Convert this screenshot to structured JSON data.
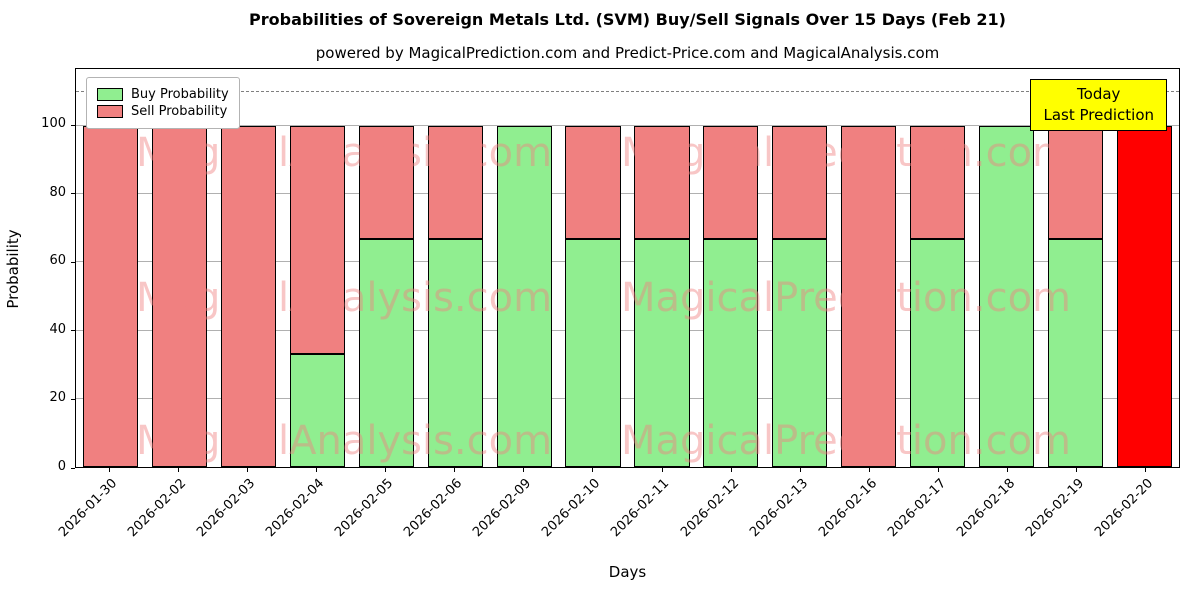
{
  "title": "Probabilities of Sovereign Metals Ltd. (SVM) Buy/Sell Signals Over 15 Days (Feb 21)",
  "subtitle": "powered by MagicalPrediction.com and Predict-Price.com and MagicalAnalysis.com",
  "legend": {
    "buy": "Buy Probability",
    "sell": "Sell Probability"
  },
  "annotation": {
    "line1": "Today",
    "line2": "Last Prediction"
  },
  "watermarks": [
    "MagicalAnalysis.com",
    "MagicalPrediction.com"
  ],
  "colors": {
    "buy": "#90ee90",
    "sell": "#f08080",
    "today": "#ff0000",
    "annotation_bg": "#ffff00",
    "watermark": "rgba(240,128,128,0.45)",
    "grid": "#b0b0b0",
    "dashed_line": "#7f7f7f"
  },
  "chart_data": {
    "type": "bar",
    "stacked": true,
    "title": "Probabilities of Sovereign Metals Ltd. (SVM) Buy/Sell Signals Over 15 Days (Feb 21)",
    "xlabel": "Days",
    "ylabel": "Probability",
    "categories": [
      "2026-01-30",
      "2026-02-02",
      "2026-02-03",
      "2026-02-04",
      "2026-02-05",
      "2026-02-06",
      "2026-02-09",
      "2026-02-10",
      "2026-02-11",
      "2026-02-12",
      "2026-02-13",
      "2026-02-16",
      "2026-02-17",
      "2026-02-18",
      "2026-02-19",
      "2026-02-20"
    ],
    "series": [
      {
        "name": "Buy Probability",
        "color": "#90ee90",
        "values": [
          0,
          0,
          0,
          33,
          67,
          67,
          100,
          67,
          67,
          67,
          67,
          0,
          67,
          100,
          67,
          0
        ]
      },
      {
        "name": "Sell Probability",
        "color": "#f08080",
        "values": [
          100,
          100,
          100,
          67,
          33,
          33,
          0,
          33,
          33,
          33,
          33,
          100,
          33,
          0,
          33,
          0
        ]
      }
    ],
    "today_index": 15,
    "today_value": 100,
    "yticks": [
      0,
      20,
      40,
      60,
      80,
      100
    ],
    "ylim": [
      0,
      116.7
    ],
    "dashed_line_y": 110,
    "grid": true,
    "legend_position": "upper left"
  }
}
